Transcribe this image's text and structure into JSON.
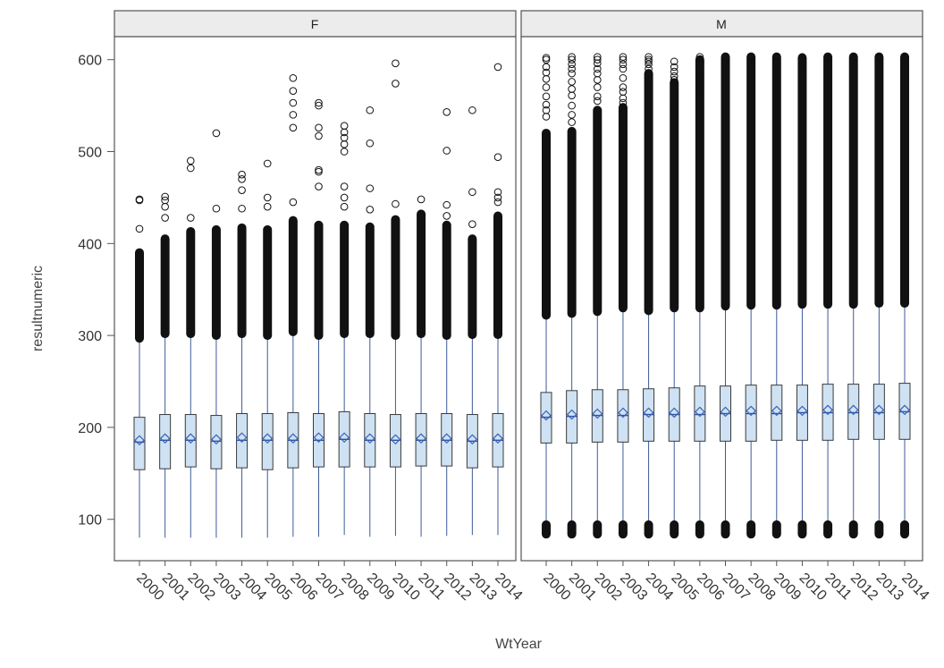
{
  "chart_data": {
    "type": "boxplot",
    "xlabel": "WtYear",
    "ylabel": "resultnumeric",
    "ylim": [
      55,
      625
    ],
    "yticks": [
      100,
      200,
      300,
      400,
      500,
      600
    ],
    "colors": {
      "box_fill": "#cfe2f3",
      "box_stroke": "#3a3a3a",
      "whisker": "#3c5a9a",
      "median": "#2b4fa3",
      "mean_marker": "#3b63b8",
      "outlier": "#111111",
      "strip_bg": "#ececec",
      "panel_border": "#555555"
    },
    "panels": [
      {
        "strip": "F",
        "categories": [
          "2000",
          "2001",
          "2002",
          "2003",
          "2004",
          "2005",
          "2006",
          "2007",
          "2008",
          "2009",
          "2010",
          "2011",
          "2012",
          "2013",
          "2014"
        ],
        "q1": [
          154,
          155,
          157,
          155,
          156,
          154,
          156,
          157,
          157,
          157,
          157,
          158,
          158,
          156,
          157
        ],
        "median": [
          184,
          186,
          186,
          185,
          186,
          186,
          186,
          186,
          187,
          186,
          186,
          186,
          186,
          185,
          186
        ],
        "q3": [
          211,
          214,
          214,
          213,
          215,
          215,
          216,
          215,
          217,
          215,
          214,
          215,
          215,
          214,
          215
        ],
        "mean": [
          186,
          188,
          188,
          187,
          189,
          188,
          188,
          189,
          189,
          188,
          187,
          188,
          188,
          187,
          188
        ],
        "whisker_low": [
          80,
          80,
          80,
          80,
          80,
          80,
          81,
          81,
          83,
          81,
          82,
          81,
          82,
          83,
          83
        ],
        "whisker_high": [
          297,
          302,
          302,
          300,
          302,
          300,
          304,
          300,
          302,
          302,
          300,
          302,
          300,
          301,
          301
        ],
        "dense_top": [
          390,
          405,
          413,
          415,
          417,
          415,
          425,
          420,
          420,
          418,
          426,
          432,
          420,
          405,
          430
        ],
        "outliers": [
          [
            448,
            447,
            416
          ],
          [
            451,
            447,
            440,
            428
          ],
          [
            490,
            482,
            428
          ],
          [
            520,
            438
          ],
          [
            475,
            470,
            458,
            438
          ],
          [
            487,
            450,
            440
          ],
          [
            580,
            566,
            553,
            540,
            526,
            445
          ],
          [
            553,
            550,
            526,
            517,
            480,
            478,
            462
          ],
          [
            528,
            521,
            515,
            508,
            500,
            462,
            450,
            440
          ],
          [
            545,
            509,
            460,
            437
          ],
          [
            596,
            574,
            443
          ],
          [
            448,
            430,
            420,
            404
          ],
          [
            543,
            501,
            442,
            430
          ],
          [
            545,
            456,
            421
          ],
          [
            592,
            494,
            456,
            450,
            445
          ]
        ]
      },
      {
        "strip": "M",
        "categories": [
          "2000",
          "2001",
          "2002",
          "2003",
          "2004",
          "2005",
          "2006",
          "2007",
          "2008",
          "2009",
          "2010",
          "2011",
          "2012",
          "2013",
          "2014"
        ],
        "q1": [
          183,
          183,
          184,
          184,
          185,
          185,
          185,
          185,
          185,
          186,
          186,
          186,
          187,
          187,
          187
        ],
        "median": [
          211,
          212,
          213,
          213,
          214,
          214,
          214,
          215,
          215,
          215,
          216,
          216,
          216,
          216,
          217
        ],
        "q3": [
          238,
          240,
          241,
          241,
          242,
          243,
          245,
          245,
          246,
          246,
          246,
          247,
          247,
          247,
          248
        ],
        "mean": [
          213,
          214,
          215,
          216,
          216,
          216,
          217,
          217,
          218,
          218,
          218,
          219,
          219,
          219,
          219
        ],
        "whisker_low": [
          97,
          96,
          97,
          97,
          97,
          97,
          97,
          97,
          97,
          97,
          98,
          98,
          98,
          99,
          99
        ],
        "whisker_high": [
          322,
          324,
          326,
          330,
          327,
          330,
          330,
          332,
          333,
          333,
          334,
          334,
          334,
          335,
          335
        ],
        "dense_top": [
          520,
          522,
          545,
          548,
          585,
          575,
          600,
          603,
          603,
          603,
          602,
          603,
          603,
          603,
          603
        ],
        "outliers": [
          [
            602,
            600,
            592,
            586,
            579,
            570,
            560,
            551,
            545,
            538
          ],
          [
            603,
            600,
            595,
            590,
            585,
            576,
            568,
            561,
            550,
            540,
            532
          ],
          [
            603,
            600,
            596,
            590,
            585,
            578,
            570,
            560,
            555
          ],
          [
            603,
            600,
            595,
            590,
            580,
            570,
            565,
            558,
            553
          ],
          [
            603,
            600,
            598,
            595,
            590
          ],
          [
            598,
            592,
            587,
            582,
            578,
            545
          ],
          [
            603,
            600,
            580,
            570
          ],
          [
            603
          ],
          [
            603
          ],
          [
            603
          ],
          [
            603,
            595
          ],
          [
            603
          ],
          [
            603
          ],
          [
            603
          ],
          [
            603
          ]
        ],
        "low_outlier_band": [
          82,
          97
        ]
      }
    ]
  }
}
